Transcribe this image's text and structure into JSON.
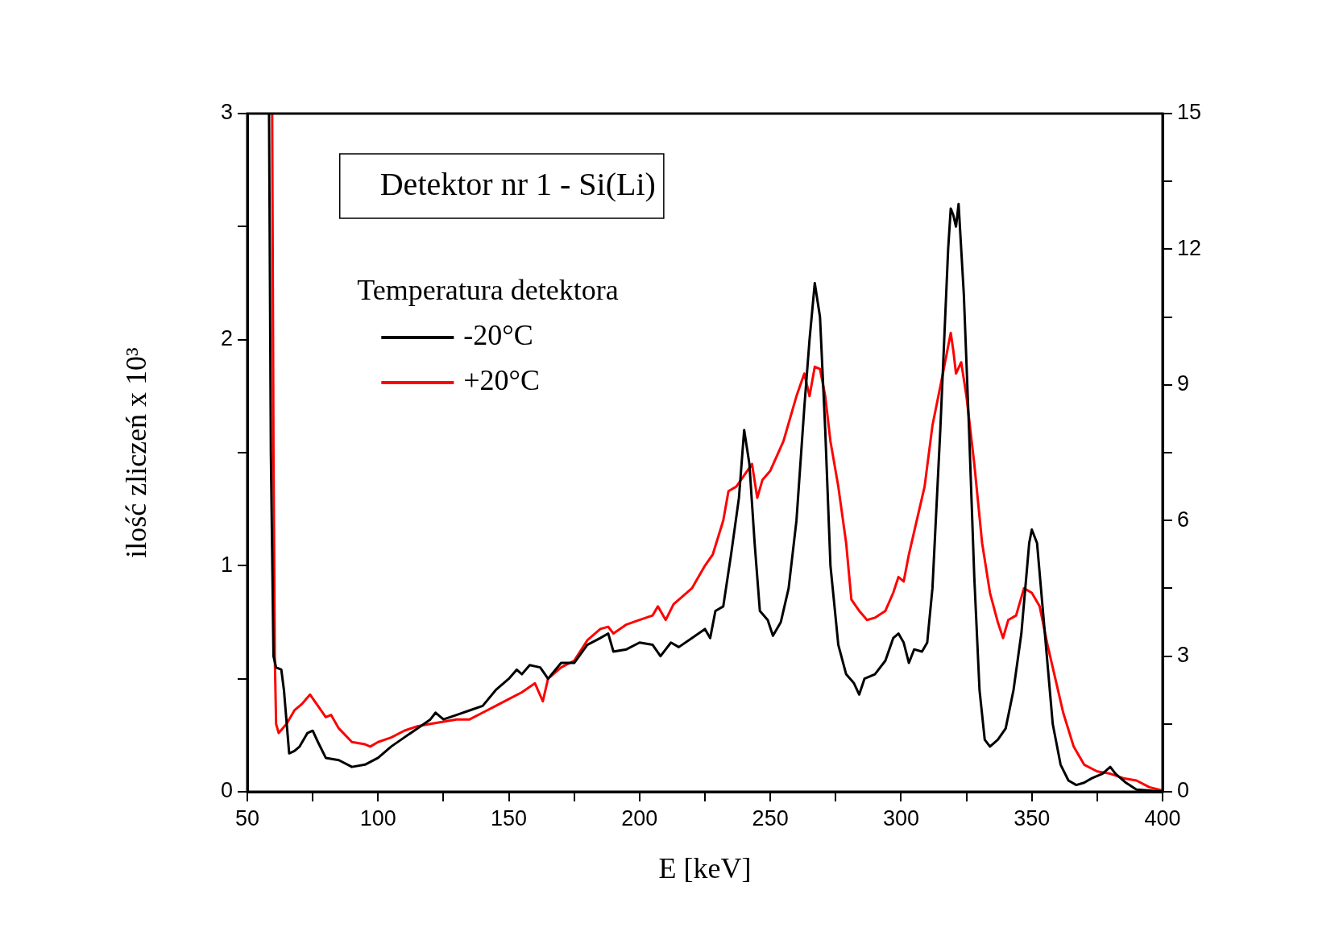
{
  "chart_data": {
    "type": "line",
    "title": "Detektor nr 1 - Si(Li)",
    "xlabel": "E [keV]",
    "ylabel": "ilość zliczeń x 10³",
    "legend_title": "Temperatura detektora",
    "legend": "top left",
    "grid": false,
    "marker": "none",
    "line_style": "solid",
    "xlim": [
      50,
      400
    ],
    "xticks": [
      50,
      {
        "value": 75,
        "label": null
      },
      100,
      {
        "value": 125,
        "label": null
      },
      150,
      {
        "value": 175,
        "label": null
      },
      200,
      {
        "value": 225,
        "label": null
      },
      250,
      {
        "value": 275,
        "label": null
      },
      300,
      {
        "value": 325,
        "label": null
      },
      350,
      {
        "value": 375,
        "label": null
      },
      400
    ],
    "ylim": [
      0,
      3
    ],
    "yticks": [
      0,
      {
        "value": 0.5,
        "label": null
      },
      1,
      {
        "value": 1.5,
        "label": null
      },
      2,
      {
        "value": 2.5,
        "label": null
      },
      3
    ],
    "y2lim": [
      0,
      15
    ],
    "y2ticks": [
      0,
      {
        "value": 1.5,
        "label": null
      },
      3,
      {
        "value": 4.5,
        "label": null
      },
      6,
      {
        "value": 7.5,
        "label": null
      },
      9,
      {
        "value": 10.5,
        "label": null
      },
      12,
      {
        "value": 13.5,
        "label": null
      },
      15
    ],
    "series": [
      {
        "name": "-20°C",
        "color": "#000000",
        "x": [
          58.3,
          59,
          60,
          61,
          63,
          64,
          66,
          68,
          70,
          73,
          75,
          77,
          80,
          85,
          90,
          95,
          100,
          105,
          110,
          115,
          120,
          122,
          125,
          130,
          135,
          140,
          145,
          150,
          153,
          155,
          158,
          162,
          165,
          170,
          175,
          180,
          185,
          188,
          190,
          195,
          200,
          205,
          208,
          212,
          215,
          220,
          225,
          227,
          229,
          232,
          235,
          238,
          240,
          242,
          244,
          246,
          249,
          251,
          254,
          257,
          260,
          263,
          265,
          267,
          269,
          271,
          273,
          276,
          279,
          282,
          284,
          286,
          290,
          294,
          297,
          299,
          301,
          303,
          305,
          308,
          310,
          312,
          315,
          318,
          319,
          320,
          321,
          322,
          324,
          326,
          328,
          330,
          332,
          334,
          337,
          340,
          343,
          346,
          349,
          350,
          352,
          355,
          358,
          361,
          364,
          367,
          370,
          373,
          377,
          380,
          382,
          386,
          390,
          395,
          400
        ],
        "values": [
          3.0,
          1.5,
          0.6,
          0.55,
          0.54,
          0.45,
          0.17,
          0.18,
          0.2,
          0.26,
          0.27,
          0.22,
          0.15,
          0.14,
          0.11,
          0.12,
          0.15,
          0.2,
          0.24,
          0.28,
          0.32,
          0.35,
          0.32,
          0.34,
          0.36,
          0.38,
          0.45,
          0.5,
          0.54,
          0.52,
          0.56,
          0.55,
          0.5,
          0.57,
          0.57,
          0.65,
          0.68,
          0.7,
          0.62,
          0.63,
          0.66,
          0.65,
          0.6,
          0.66,
          0.64,
          0.68,
          0.72,
          0.68,
          0.8,
          0.82,
          1.05,
          1.3,
          1.6,
          1.45,
          1.1,
          0.8,
          0.76,
          0.69,
          0.75,
          0.9,
          1.2,
          1.7,
          2.0,
          2.25,
          2.1,
          1.6,
          1.0,
          0.65,
          0.52,
          0.48,
          0.43,
          0.5,
          0.52,
          0.58,
          0.68,
          0.7,
          0.66,
          0.57,
          0.63,
          0.62,
          0.66,
          0.9,
          1.6,
          2.4,
          2.58,
          2.55,
          2.5,
          2.6,
          2.2,
          1.6,
          0.95,
          0.45,
          0.23,
          0.2,
          0.23,
          0.28,
          0.45,
          0.7,
          1.1,
          1.16,
          1.1,
          0.7,
          0.3,
          0.12,
          0.05,
          0.03,
          0.04,
          0.06,
          0.08,
          0.11,
          0.08,
          0.04,
          0.01,
          0.005,
          0
        ]
      },
      {
        "name": "+20°C",
        "color": "#ff0000",
        "x": [
          59.5,
          60,
          60.5,
          61,
          62,
          65,
          68,
          71,
          74,
          77,
          80,
          82,
          85,
          90,
          95,
          97,
          100,
          105,
          110,
          115,
          120,
          125,
          130,
          135,
          140,
          145,
          150,
          155,
          160,
          163,
          165,
          170,
          175,
          180,
          185,
          188,
          190,
          195,
          200,
          205,
          207,
          210,
          213,
          217,
          220,
          225,
          228,
          232,
          234,
          237,
          240,
          243,
          245,
          247,
          250,
          255,
          260,
          263,
          265,
          267,
          269,
          271,
          273,
          276,
          279,
          281,
          284,
          287,
          290,
          294,
          297,
          299,
          301,
          303,
          306,
          309,
          312,
          316,
          319,
          320,
          321,
          323,
          325,
          328,
          331,
          334,
          337,
          339,
          341,
          344,
          347,
          350,
          353,
          356,
          359,
          362,
          366,
          370,
          375,
          380,
          385,
          390,
          395,
          400
        ],
        "values": [
          3.0,
          1.5,
          0.6,
          0.3,
          0.26,
          0.3,
          0.36,
          0.39,
          0.43,
          0.38,
          0.33,
          0.34,
          0.28,
          0.22,
          0.21,
          0.2,
          0.22,
          0.24,
          0.27,
          0.29,
          0.3,
          0.31,
          0.32,
          0.32,
          0.35,
          0.38,
          0.41,
          0.44,
          0.48,
          0.4,
          0.5,
          0.55,
          0.58,
          0.67,
          0.72,
          0.73,
          0.7,
          0.74,
          0.76,
          0.78,
          0.82,
          0.76,
          0.83,
          0.87,
          0.9,
          1.0,
          1.05,
          1.2,
          1.33,
          1.35,
          1.4,
          1.45,
          1.3,
          1.38,
          1.42,
          1.55,
          1.75,
          1.85,
          1.75,
          1.88,
          1.87,
          1.75,
          1.55,
          1.35,
          1.1,
          0.85,
          0.8,
          0.76,
          0.77,
          0.8,
          0.88,
          0.95,
          0.93,
          1.05,
          1.2,
          1.35,
          1.62,
          1.85,
          2.03,
          1.95,
          1.85,
          1.9,
          1.75,
          1.45,
          1.1,
          0.88,
          0.75,
          0.68,
          0.76,
          0.78,
          0.9,
          0.88,
          0.82,
          0.65,
          0.5,
          0.35,
          0.2,
          0.12,
          0.09,
          0.08,
          0.06,
          0.05,
          0.02,
          0.005
        ]
      }
    ]
  }
}
